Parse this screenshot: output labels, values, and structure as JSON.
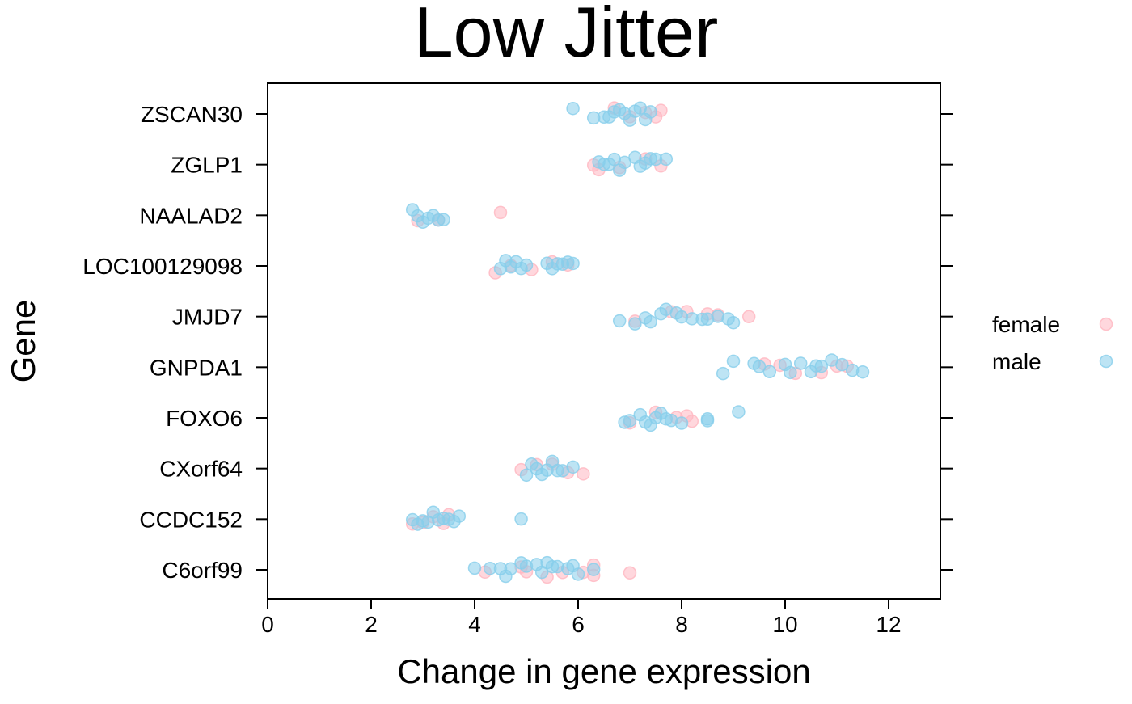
{
  "chart_data": {
    "type": "scatter",
    "title": "Low Jitter",
    "xlabel": "Change in gene expression",
    "ylabel": "Gene",
    "xlim": [
      0,
      13
    ],
    "xticks": [
      0,
      2,
      4,
      6,
      8,
      10,
      12
    ],
    "categories": [
      "C6orf99",
      "CCDC152",
      "CXorf64",
      "FOXO6",
      "GNPDA1",
      "JMJD7",
      "LOC100129098",
      "NAALAD2",
      "ZGLP1",
      "ZSCAN30"
    ],
    "grid": false,
    "legend_position": "right",
    "series": [
      {
        "name": "female",
        "color": "#ffb6c1",
        "points": [
          {
            "gene": "C6orf99",
            "x": 4.2
          },
          {
            "gene": "C6orf99",
            "x": 4.9
          },
          {
            "gene": "C6orf99",
            "x": 5.0
          },
          {
            "gene": "C6orf99",
            "x": 5.4
          },
          {
            "gene": "C6orf99",
            "x": 5.7
          },
          {
            "gene": "C6orf99",
            "x": 6.1
          },
          {
            "gene": "C6orf99",
            "x": 6.3
          },
          {
            "gene": "C6orf99",
            "x": 6.3
          },
          {
            "gene": "C6orf99",
            "x": 7.0
          },
          {
            "gene": "CCDC152",
            "x": 2.8
          },
          {
            "gene": "CCDC152",
            "x": 3.0
          },
          {
            "gene": "CCDC152",
            "x": 3.2
          },
          {
            "gene": "CCDC152",
            "x": 3.4
          },
          {
            "gene": "CCDC152",
            "x": 3.5
          },
          {
            "gene": "CXorf64",
            "x": 4.9
          },
          {
            "gene": "CXorf64",
            "x": 5.2
          },
          {
            "gene": "CXorf64",
            "x": 5.5
          },
          {
            "gene": "CXorf64",
            "x": 5.8
          },
          {
            "gene": "CXorf64",
            "x": 6.1
          },
          {
            "gene": "FOXO6",
            "x": 7.0
          },
          {
            "gene": "FOXO6",
            "x": 7.5
          },
          {
            "gene": "FOXO6",
            "x": 7.9
          },
          {
            "gene": "FOXO6",
            "x": 8.2
          },
          {
            "gene": "FOXO6",
            "x": 8.1
          },
          {
            "gene": "GNPDA1",
            "x": 9.6
          },
          {
            "gene": "GNPDA1",
            "x": 9.9
          },
          {
            "gene": "GNPDA1",
            "x": 10.2
          },
          {
            "gene": "GNPDA1",
            "x": 10.7
          },
          {
            "gene": "GNPDA1",
            "x": 11.0
          },
          {
            "gene": "GNPDA1",
            "x": 11.2
          },
          {
            "gene": "JMJD7",
            "x": 7.1
          },
          {
            "gene": "JMJD7",
            "x": 7.8
          },
          {
            "gene": "JMJD7",
            "x": 8.1
          },
          {
            "gene": "JMJD7",
            "x": 8.5
          },
          {
            "gene": "JMJD7",
            "x": 8.7
          },
          {
            "gene": "JMJD7",
            "x": 9.3
          },
          {
            "gene": "LOC100129098",
            "x": 4.4
          },
          {
            "gene": "LOC100129098",
            "x": 4.7
          },
          {
            "gene": "LOC100129098",
            "x": 5.1
          },
          {
            "gene": "LOC100129098",
            "x": 5.5
          },
          {
            "gene": "LOC100129098",
            "x": 5.8
          },
          {
            "gene": "NAALAD2",
            "x": 2.9
          },
          {
            "gene": "NAALAD2",
            "x": 3.3
          },
          {
            "gene": "NAALAD2",
            "x": 4.5
          },
          {
            "gene": "ZGLP1",
            "x": 6.3
          },
          {
            "gene": "ZGLP1",
            "x": 6.4
          },
          {
            "gene": "ZGLP1",
            "x": 6.8
          },
          {
            "gene": "ZGLP1",
            "x": 7.3
          },
          {
            "gene": "ZGLP1",
            "x": 7.6
          },
          {
            "gene": "ZSCAN30",
            "x": 6.7
          },
          {
            "gene": "ZSCAN30",
            "x": 7.0
          },
          {
            "gene": "ZSCAN30",
            "x": 7.3
          },
          {
            "gene": "ZSCAN30",
            "x": 7.5
          },
          {
            "gene": "ZSCAN30",
            "x": 7.6
          }
        ]
      },
      {
        "name": "male",
        "color": "#87ceeb",
        "points": [
          {
            "gene": "C6orf99",
            "x": 4.0
          },
          {
            "gene": "C6orf99",
            "x": 4.3
          },
          {
            "gene": "C6orf99",
            "x": 4.5
          },
          {
            "gene": "C6orf99",
            "x": 4.6
          },
          {
            "gene": "C6orf99",
            "x": 4.7
          },
          {
            "gene": "C6orf99",
            "x": 4.9
          },
          {
            "gene": "C6orf99",
            "x": 5.0
          },
          {
            "gene": "C6orf99",
            "x": 5.2
          },
          {
            "gene": "C6orf99",
            "x": 5.3
          },
          {
            "gene": "C6orf99",
            "x": 5.4
          },
          {
            "gene": "C6orf99",
            "x": 5.5
          },
          {
            "gene": "C6orf99",
            "x": 5.6
          },
          {
            "gene": "C6orf99",
            "x": 5.8
          },
          {
            "gene": "C6orf99",
            "x": 5.9
          },
          {
            "gene": "C6orf99",
            "x": 6.0
          },
          {
            "gene": "C6orf99",
            "x": 6.3
          },
          {
            "gene": "CCDC152",
            "x": 2.8
          },
          {
            "gene": "CCDC152",
            "x": 2.9
          },
          {
            "gene": "CCDC152",
            "x": 3.0
          },
          {
            "gene": "CCDC152",
            "x": 3.1
          },
          {
            "gene": "CCDC152",
            "x": 3.2
          },
          {
            "gene": "CCDC152",
            "x": 3.3
          },
          {
            "gene": "CCDC152",
            "x": 3.4
          },
          {
            "gene": "CCDC152",
            "x": 3.5
          },
          {
            "gene": "CCDC152",
            "x": 3.6
          },
          {
            "gene": "CCDC152",
            "x": 3.7
          },
          {
            "gene": "CCDC152",
            "x": 4.9
          },
          {
            "gene": "CXorf64",
            "x": 5.0
          },
          {
            "gene": "CXorf64",
            "x": 5.1
          },
          {
            "gene": "CXorf64",
            "x": 5.2
          },
          {
            "gene": "CXorf64",
            "x": 5.3
          },
          {
            "gene": "CXorf64",
            "x": 5.4
          },
          {
            "gene": "CXorf64",
            "x": 5.5
          },
          {
            "gene": "CXorf64",
            "x": 5.6
          },
          {
            "gene": "CXorf64",
            "x": 5.7
          },
          {
            "gene": "CXorf64",
            "x": 5.9
          },
          {
            "gene": "FOXO6",
            "x": 6.9
          },
          {
            "gene": "FOXO6",
            "x": 7.0
          },
          {
            "gene": "FOXO6",
            "x": 7.2
          },
          {
            "gene": "FOXO6",
            "x": 7.3
          },
          {
            "gene": "FOXO6",
            "x": 7.4
          },
          {
            "gene": "FOXO6",
            "x": 7.5
          },
          {
            "gene": "FOXO6",
            "x": 7.6
          },
          {
            "gene": "FOXO6",
            "x": 7.7
          },
          {
            "gene": "FOXO6",
            "x": 7.8
          },
          {
            "gene": "FOXO6",
            "x": 8.0
          },
          {
            "gene": "FOXO6",
            "x": 8.5
          },
          {
            "gene": "FOXO6",
            "x": 8.5
          },
          {
            "gene": "FOXO6",
            "x": 9.1
          },
          {
            "gene": "GNPDA1",
            "x": 8.8
          },
          {
            "gene": "GNPDA1",
            "x": 9.0
          },
          {
            "gene": "GNPDA1",
            "x": 9.4
          },
          {
            "gene": "GNPDA1",
            "x": 9.5
          },
          {
            "gene": "GNPDA1",
            "x": 9.7
          },
          {
            "gene": "GNPDA1",
            "x": 10.0
          },
          {
            "gene": "GNPDA1",
            "x": 10.1
          },
          {
            "gene": "GNPDA1",
            "x": 10.3
          },
          {
            "gene": "GNPDA1",
            "x": 10.5
          },
          {
            "gene": "GNPDA1",
            "x": 10.6
          },
          {
            "gene": "GNPDA1",
            "x": 10.7
          },
          {
            "gene": "GNPDA1",
            "x": 10.9
          },
          {
            "gene": "GNPDA1",
            "x": 11.1
          },
          {
            "gene": "GNPDA1",
            "x": 11.3
          },
          {
            "gene": "GNPDA1",
            "x": 11.5
          },
          {
            "gene": "JMJD7",
            "x": 6.8
          },
          {
            "gene": "JMJD7",
            "x": 7.1
          },
          {
            "gene": "JMJD7",
            "x": 7.3
          },
          {
            "gene": "JMJD7",
            "x": 7.4
          },
          {
            "gene": "JMJD7",
            "x": 7.6
          },
          {
            "gene": "JMJD7",
            "x": 7.7
          },
          {
            "gene": "JMJD7",
            "x": 7.9
          },
          {
            "gene": "JMJD7",
            "x": 8.0
          },
          {
            "gene": "JMJD7",
            "x": 8.2
          },
          {
            "gene": "JMJD7",
            "x": 8.4
          },
          {
            "gene": "JMJD7",
            "x": 8.5
          },
          {
            "gene": "JMJD7",
            "x": 8.7
          },
          {
            "gene": "JMJD7",
            "x": 8.9
          },
          {
            "gene": "JMJD7",
            "x": 9.0
          },
          {
            "gene": "LOC100129098",
            "x": 4.5
          },
          {
            "gene": "LOC100129098",
            "x": 4.6
          },
          {
            "gene": "LOC100129098",
            "x": 4.7
          },
          {
            "gene": "LOC100129098",
            "x": 4.8
          },
          {
            "gene": "LOC100129098",
            "x": 4.9
          },
          {
            "gene": "LOC100129098",
            "x": 5.0
          },
          {
            "gene": "LOC100129098",
            "x": 5.4
          },
          {
            "gene": "LOC100129098",
            "x": 5.5
          },
          {
            "gene": "LOC100129098",
            "x": 5.6
          },
          {
            "gene": "LOC100129098",
            "x": 5.7
          },
          {
            "gene": "LOC100129098",
            "x": 5.8
          },
          {
            "gene": "LOC100129098",
            "x": 5.9
          },
          {
            "gene": "NAALAD2",
            "x": 2.8
          },
          {
            "gene": "NAALAD2",
            "x": 2.9
          },
          {
            "gene": "NAALAD2",
            "x": 3.0
          },
          {
            "gene": "NAALAD2",
            "x": 3.1
          },
          {
            "gene": "NAALAD2",
            "x": 3.2
          },
          {
            "gene": "NAALAD2",
            "x": 3.3
          },
          {
            "gene": "NAALAD2",
            "x": 3.4
          },
          {
            "gene": "ZGLP1",
            "x": 6.4
          },
          {
            "gene": "ZGLP1",
            "x": 6.5
          },
          {
            "gene": "ZGLP1",
            "x": 6.6
          },
          {
            "gene": "ZGLP1",
            "x": 6.7
          },
          {
            "gene": "ZGLP1",
            "x": 6.8
          },
          {
            "gene": "ZGLP1",
            "x": 6.9
          },
          {
            "gene": "ZGLP1",
            "x": 7.1
          },
          {
            "gene": "ZGLP1",
            "x": 7.2
          },
          {
            "gene": "ZGLP1",
            "x": 7.3
          },
          {
            "gene": "ZGLP1",
            "x": 7.4
          },
          {
            "gene": "ZGLP1",
            "x": 7.5
          },
          {
            "gene": "ZGLP1",
            "x": 7.7
          },
          {
            "gene": "ZSCAN30",
            "x": 5.9
          },
          {
            "gene": "ZSCAN30",
            "x": 6.3
          },
          {
            "gene": "ZSCAN30",
            "x": 6.5
          },
          {
            "gene": "ZSCAN30",
            "x": 6.6
          },
          {
            "gene": "ZSCAN30",
            "x": 6.7
          },
          {
            "gene": "ZSCAN30",
            "x": 6.8
          },
          {
            "gene": "ZSCAN30",
            "x": 6.9
          },
          {
            "gene": "ZSCAN30",
            "x": 7.0
          },
          {
            "gene": "ZSCAN30",
            "x": 7.1
          },
          {
            "gene": "ZSCAN30",
            "x": 7.2
          },
          {
            "gene": "ZSCAN30",
            "x": 7.3
          },
          {
            "gene": "ZSCAN30",
            "x": 7.4
          }
        ]
      }
    ],
    "legend": [
      {
        "label": "female",
        "color": "#ffb6c1"
      },
      {
        "label": "male",
        "color": "#87ceeb"
      }
    ]
  }
}
